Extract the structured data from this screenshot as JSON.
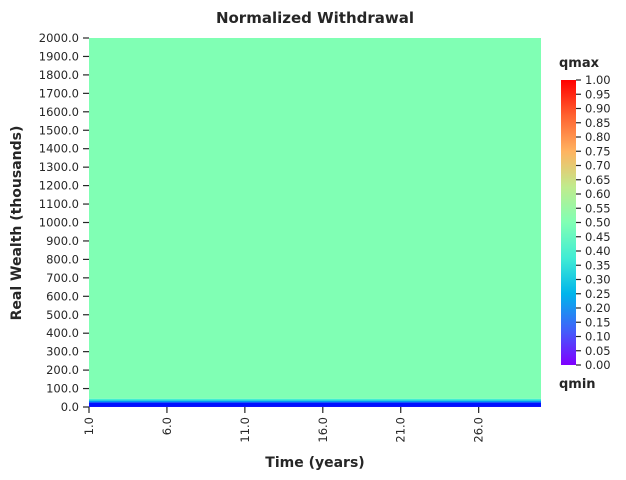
{
  "chart_data": {
    "type": "heatmap",
    "title": "Normalized Withdrawal",
    "xlabel": "Time (years)",
    "ylabel": "Real Wealth (thousands)",
    "x_ticks": [
      "1.0",
      "6.0",
      "11.0",
      "16.0",
      "21.0",
      "26.0"
    ],
    "x_range": [
      1,
      30
    ],
    "y_ticks": [
      "0.0",
      "100.0",
      "200.0",
      "300.0",
      "400.0",
      "500.0",
      "600.0",
      "700.0",
      "800.0",
      "900.0",
      "1000.0",
      "1100.0",
      "1200.0",
      "1300.0",
      "1400.0",
      "1500.0",
      "1600.0",
      "1700.0",
      "1800.0",
      "1900.0",
      "2000.0"
    ],
    "y_range": [
      0,
      2000
    ],
    "colormap": "rainbow",
    "colorbar": {
      "label_top": "qmax",
      "label_bottom": "qmin",
      "range": [
        0.0,
        1.0
      ],
      "ticks": [
        "0.00",
        "0.05",
        "0.10",
        "0.15",
        "0.20",
        "0.25",
        "0.30",
        "0.35",
        "0.40",
        "0.45",
        "0.50",
        "0.55",
        "0.60",
        "0.65",
        "0.70",
        "0.75",
        "0.80",
        "0.85",
        "0.90",
        "0.95",
        "1.00"
      ]
    },
    "bands": [
      {
        "wealth_from": 0,
        "wealth_to": 5,
        "value": 0.0
      },
      {
        "wealth_from": 5,
        "wealth_to": 25,
        "value": 0.02
      },
      {
        "wealth_from": 25,
        "wealth_to": 35,
        "value": 0.2
      },
      {
        "wealth_from": 35,
        "wealth_to": 45,
        "value": 0.38
      },
      {
        "wealth_from": 45,
        "wealth_to": 2000,
        "value": 0.5
      }
    ]
  }
}
